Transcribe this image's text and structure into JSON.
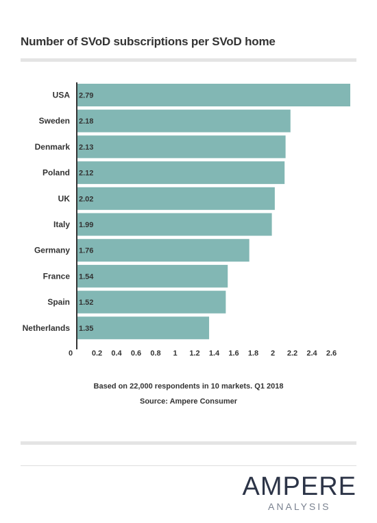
{
  "title": "Number of SVoD subscriptions per SVoD home",
  "notes": {
    "line1": "Based on 22,000 respondents in 10 markets. Q1 2018",
    "line2": "Source: Ampere Consumer"
  },
  "logo": {
    "main": "AMPERE",
    "sub": "ANALYSIS"
  },
  "colors": {
    "bar": "#82b7b4",
    "axis": "#333333",
    "text": "#333333"
  },
  "chart_data": {
    "type": "bar",
    "orientation": "horizontal",
    "categories": [
      "USA",
      "Sweden",
      "Denmark",
      "Poland",
      "UK",
      "Italy",
      "Germany",
      "France",
      "Spain",
      "Netherlands"
    ],
    "values": [
      2.79,
      2.18,
      2.13,
      2.12,
      2.02,
      1.99,
      1.76,
      1.54,
      1.52,
      1.35
    ],
    "xticks": [
      "0",
      "0.2",
      "0.4",
      "0.6",
      "0.8",
      "1",
      "1.2",
      "1.4",
      "1.6",
      "1.8",
      "2",
      "2.2",
      "2.4",
      "2.6"
    ],
    "title": "Number of SVoD subscriptions per SVoD home",
    "xlim": [
      0,
      2.79
    ],
    "grid": false,
    "legend": "none"
  }
}
